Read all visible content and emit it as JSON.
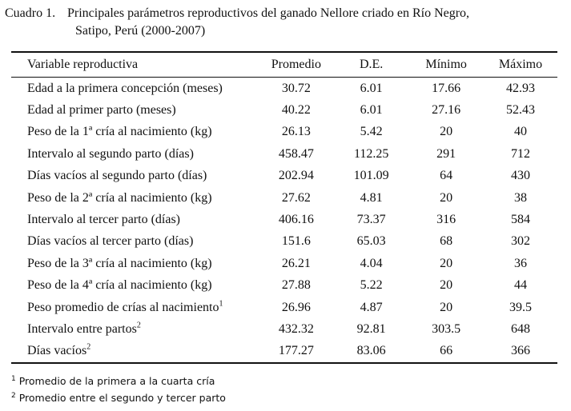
{
  "caption": {
    "label": "Cuadro 1.",
    "line1": "Principales parámetros reproductivos del ganado Nellore criado en Río Negro,",
    "line2": "Satipo, Perú (2000-2007)"
  },
  "table": {
    "headers": [
      "Variable reproductiva",
      "Promedio",
      "D.E.",
      "Mínimo",
      "Máximo"
    ],
    "rows": [
      {
        "variable": "Edad a la primera concepción (meses)",
        "sup": "",
        "promedio": "30.72",
        "de": "6.01",
        "minimo": "17.66",
        "maximo": "42.93"
      },
      {
        "variable": "Edad al primer parto (meses)",
        "sup": "",
        "promedio": "40.22",
        "de": "6.01",
        "minimo": "27.16",
        "maximo": "52.43"
      },
      {
        "variable": "Peso de la 1ª cría al nacimiento (kg)",
        "sup": "",
        "promedio": "26.13",
        "de": "5.42",
        "minimo": "20",
        "maximo": "40"
      },
      {
        "variable": "Intervalo al segundo parto (días)",
        "sup": "",
        "promedio": "458.47",
        "de": "112.25",
        "minimo": "291",
        "maximo": "712"
      },
      {
        "variable": "Días vacíos al segundo parto (días)",
        "sup": "",
        "promedio": "202.94",
        "de": "101.09",
        "minimo": "64",
        "maximo": "430"
      },
      {
        "variable": "Peso de la 2ª cría al nacimiento (kg)",
        "sup": "",
        "promedio": "27.62",
        "de": "4.81",
        "minimo": "20",
        "maximo": "38"
      },
      {
        "variable": "Intervalo al tercer parto (días)",
        "sup": "",
        "promedio": "406.16",
        "de": "73.37",
        "minimo": "316",
        "maximo": "584"
      },
      {
        "variable": "Días vacíos al tercer parto (días)",
        "sup": "",
        "promedio": "151.6",
        "de": "65.03",
        "minimo": "68",
        "maximo": "302"
      },
      {
        "variable": "Peso de la 3ª cría al nacimiento (kg)",
        "sup": "",
        "promedio": "26.21",
        "de": "4.04",
        "minimo": "20",
        "maximo": "36"
      },
      {
        "variable": "Peso de la 4ª cría al nacimiento (kg)",
        "sup": "",
        "promedio": "27.88",
        "de": "5.22",
        "minimo": "20",
        "maximo": "44"
      },
      {
        "variable": "Peso promedio de crías al nacimiento",
        "sup": "1",
        "promedio": "26.96",
        "de": "4.87",
        "minimo": "20",
        "maximo": "39.5"
      },
      {
        "variable": "Intervalo entre partos",
        "sup": "2",
        "promedio": "432.32",
        "de": "92.81",
        "minimo": "303.5",
        "maximo": "648"
      },
      {
        "variable": "Días vacíos",
        "sup": "2",
        "promedio": "177.27",
        "de": "83.06",
        "minimo": "66",
        "maximo": "366"
      }
    ]
  },
  "footnotes": [
    {
      "mark": "1",
      "text": "Promedio de la primera a la cuarta cría"
    },
    {
      "mark": "2",
      "text": "Promedio entre el segundo y tercer parto"
    }
  ]
}
